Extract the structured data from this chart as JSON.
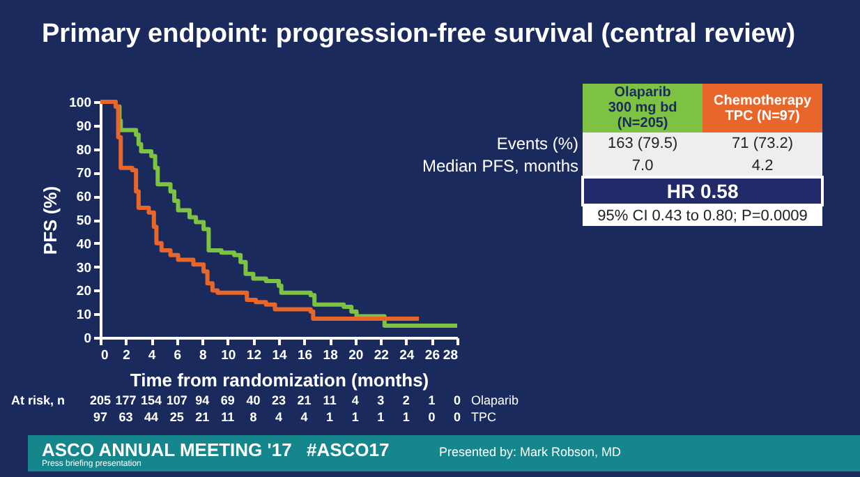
{
  "chart_data": {
    "type": "step",
    "title": "Primary endpoint: progression-free survival (central review)",
    "xlabel": "Time from randomization (months)",
    "ylabel": "PFS (%)",
    "xlim": [
      0,
      28
    ],
    "xticks": [
      0,
      2,
      4,
      6,
      8,
      10,
      12,
      14,
      16,
      18,
      20,
      22,
      24,
      26,
      28
    ],
    "ylim": [
      0,
      100
    ],
    "yticks": [
      0,
      10,
      20,
      30,
      40,
      50,
      60,
      70,
      80,
      90,
      100
    ],
    "series": [
      {
        "name": "Olaparib\n300 mg bd\n(N=205)",
        "color": "#7dc242",
        "x": [
          0,
          1.2,
          1.5,
          1.6,
          2.8,
          3.0,
          3.2,
          4.0,
          4.3,
          4.5,
          5.5,
          5.8,
          6.1,
          7.0,
          7.5,
          8.1,
          8.5,
          9.5,
          10.5,
          11.0,
          11.4,
          12.0,
          13.0,
          14.0,
          14.2,
          16.5,
          16.8,
          19.1,
          19.7,
          20.1,
          22.3,
          28
        ],
        "values": [
          100,
          98,
          92,
          88,
          86,
          82,
          79,
          77,
          72,
          65,
          62,
          58,
          54,
          51,
          49,
          46,
          37,
          36,
          35,
          32,
          27,
          25,
          24,
          22,
          19,
          18,
          14,
          13,
          11,
          9,
          5,
          5
        ]
      },
      {
        "name": "Chemotherapy\nTPC (N=97)",
        "color": "#e8662a",
        "x": [
          0,
          1.2,
          1.4,
          1.6,
          2.5,
          2.8,
          3.0,
          3.8,
          4.2,
          4.4,
          4.8,
          5.5,
          6.1,
          7.3,
          8.1,
          8.4,
          8.8,
          9.2,
          11.5,
          12.2,
          13.0,
          13.7,
          16.5,
          16.7,
          25
        ],
        "values": [
          100,
          98,
          85,
          72,
          71,
          62,
          55,
          53,
          47,
          40,
          37,
          35,
          33,
          31,
          28,
          23,
          20,
          19,
          16,
          15,
          14,
          12,
          11,
          8,
          8
        ]
      }
    ],
    "annotations": [
      "Events (%)",
      "163 (79.5)",
      "71 (73.2)",
      "Median PFS, months",
      "7.0",
      "4.2",
      "HR 0.58",
      "95% CI 0.43 to 0.80; P=0.0009",
      "At risk, n",
      "Olaparib",
      "TPC",
      "205",
      "177",
      "154",
      "107",
      "94",
      "69",
      "40",
      "23",
      "21",
      "11",
      "4",
      "3",
      "2",
      "1",
      "0",
      "97",
      "63",
      "44",
      "25",
      "21",
      "11",
      "8",
      "4",
      "4",
      "1",
      "1",
      "1",
      "1",
      "0",
      "0",
      "ASCO ANNUAL MEETING '17",
      "#ASCO17",
      "Press briefing presentation",
      "Presented by: Mark Robson, MD"
    ]
  }
}
